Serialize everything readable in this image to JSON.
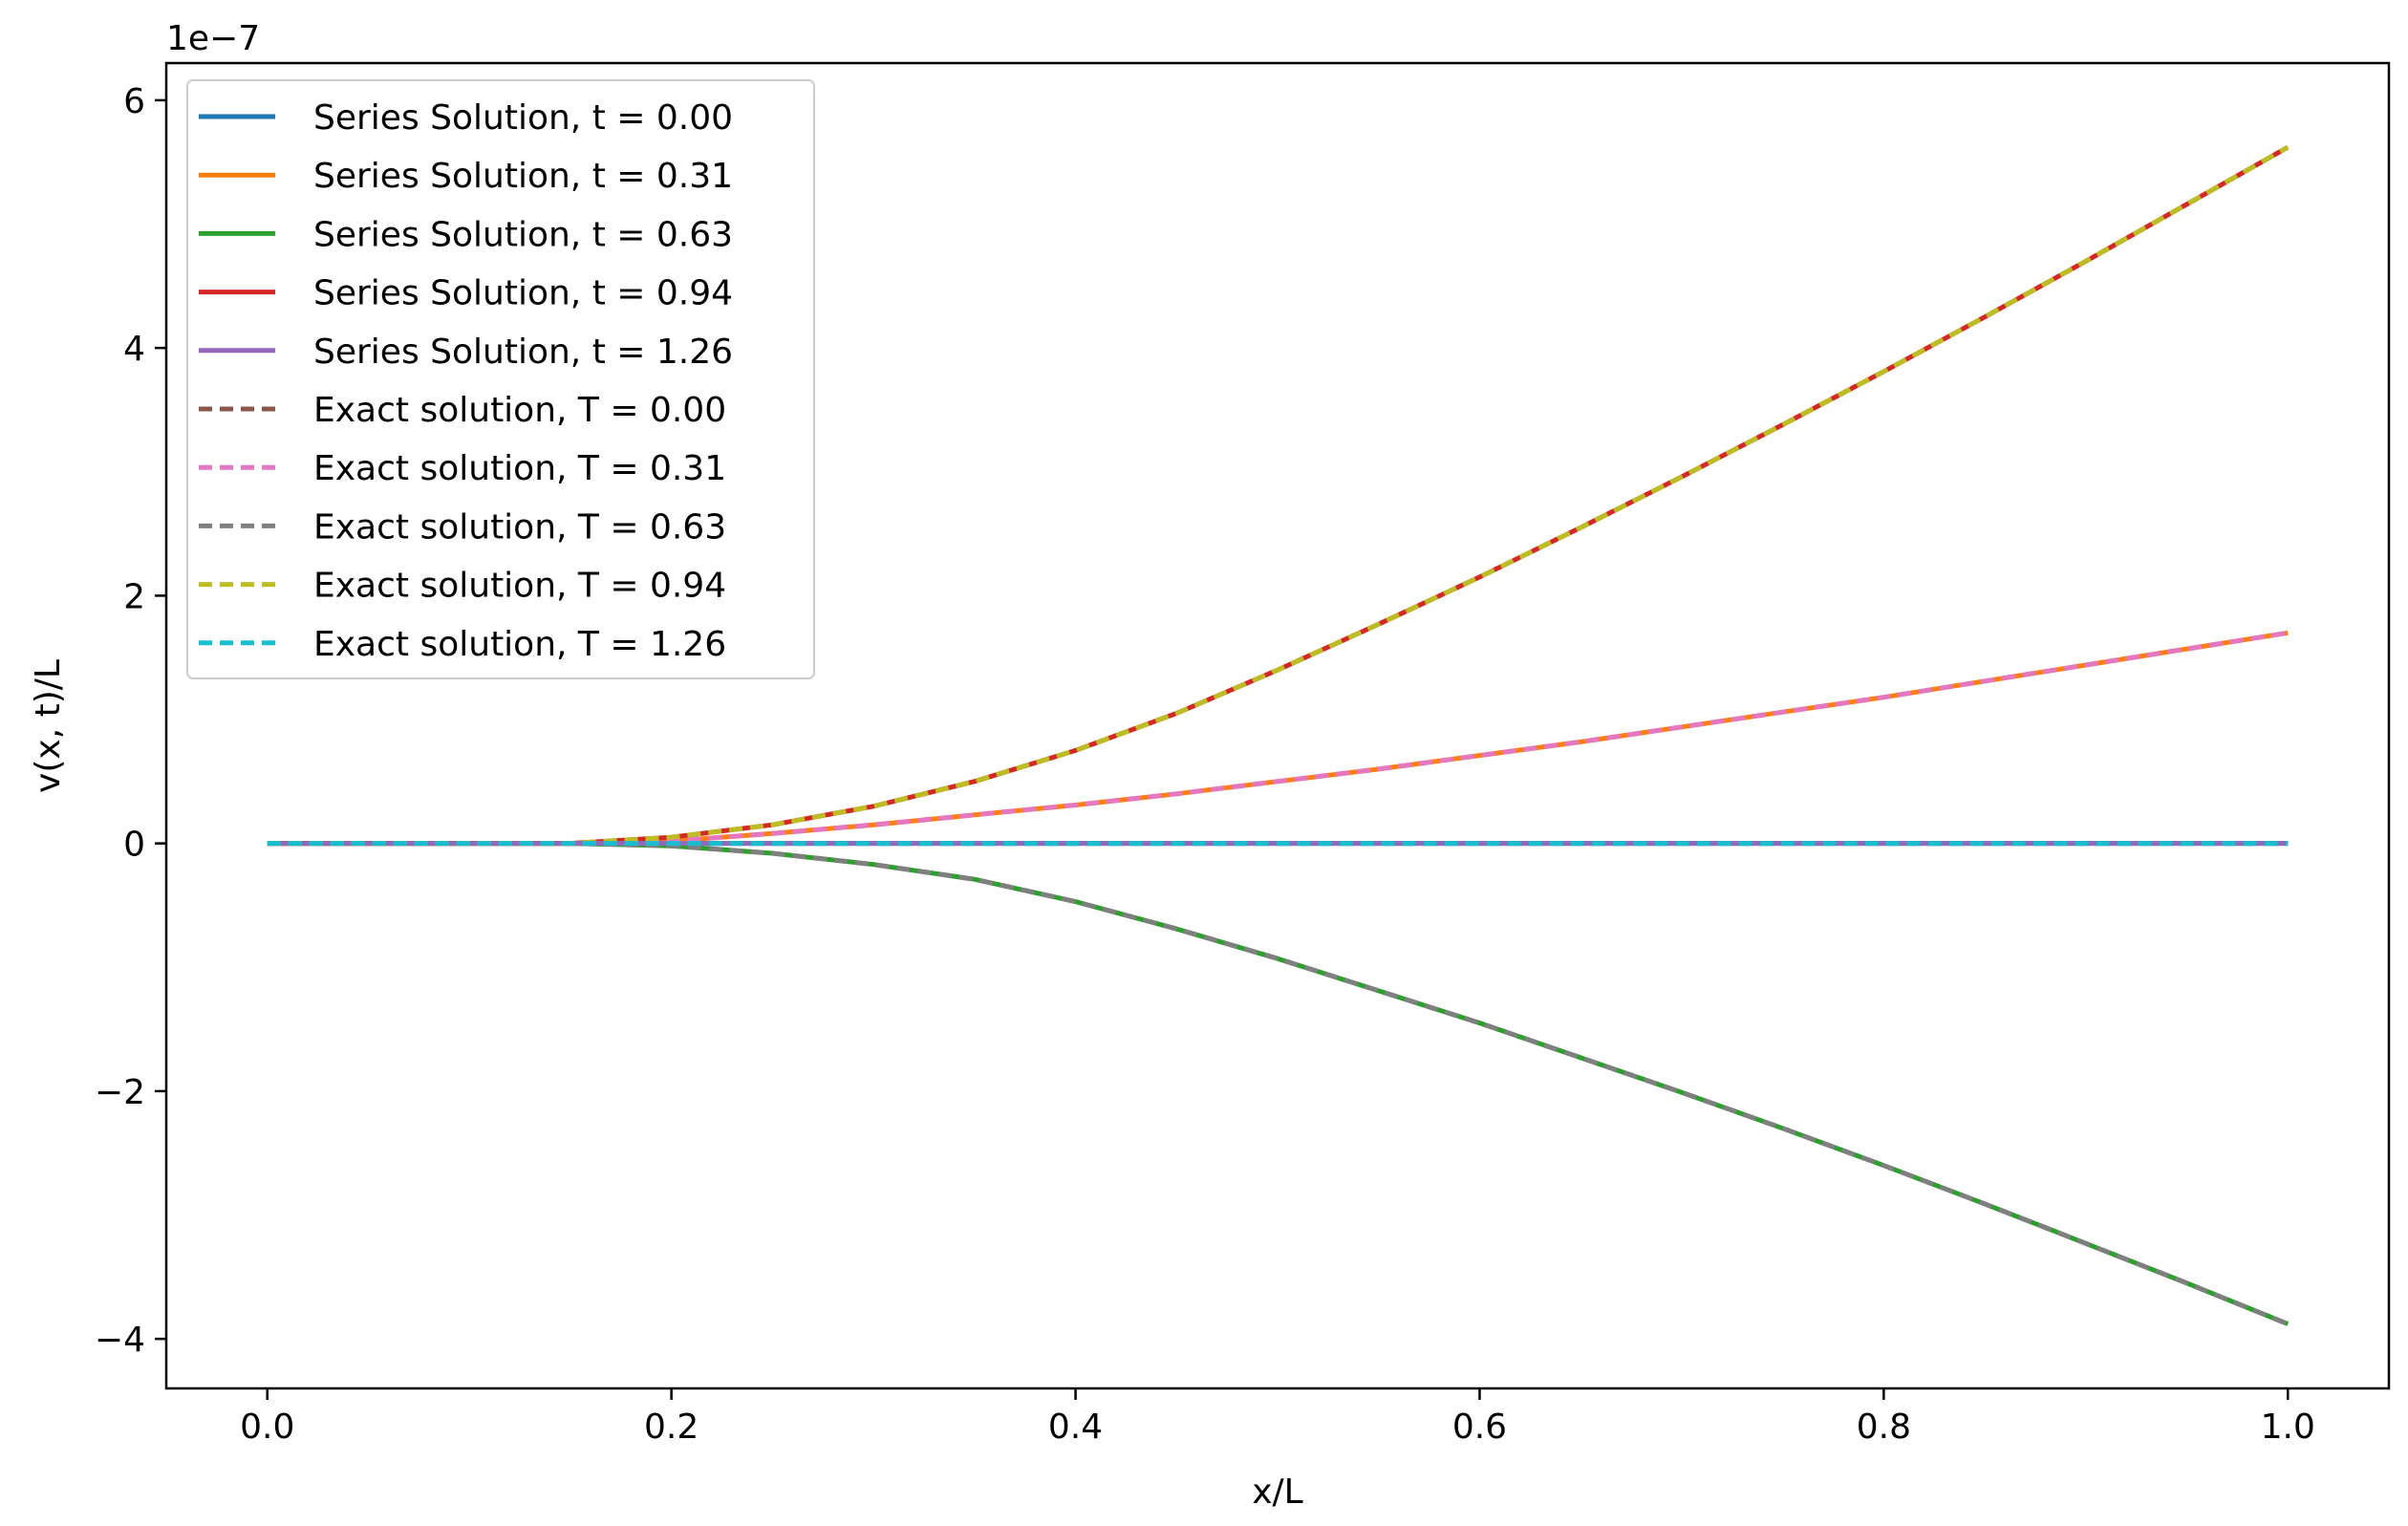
{
  "chart_data": {
    "type": "line",
    "title": "",
    "xlabel": "x/L",
    "ylabel": "v(x, t)/L",
    "y_offset_label": "1e−7",
    "xlim": [
      -0.05,
      1.05
    ],
    "ylim": [
      -4.4,
      6.3
    ],
    "y_scale_factor": 1e-07,
    "xticks": [
      0.0,
      0.2,
      0.4,
      0.6,
      0.8,
      1.0
    ],
    "xtick_labels": [
      "0.0",
      "0.2",
      "0.4",
      "0.6",
      "0.8",
      "1.0"
    ],
    "yticks": [
      -4,
      -2,
      0,
      2,
      4,
      6
    ],
    "ytick_labels": [
      "−4",
      "−2",
      "0",
      "2",
      "4",
      "6"
    ],
    "grid": false,
    "legend_position": "top-left",
    "x": [
      0.0,
      0.05,
      0.1,
      0.15,
      0.2,
      0.25,
      0.3,
      0.35,
      0.4,
      0.45,
      0.5,
      0.55,
      0.6,
      0.65,
      0.7,
      0.75,
      0.8,
      0.85,
      0.9,
      0.95,
      1.0
    ],
    "series": [
      {
        "name": "Series Solution, t = 0.00",
        "color": "#1f77b4",
        "style": "solid",
        "values": [
          0,
          0,
          0,
          0,
          0,
          0,
          0,
          0,
          0,
          0,
          0,
          0,
          0,
          0,
          0,
          0,
          0,
          0,
          0,
          0,
          0
        ]
      },
      {
        "name": "Series Solution, t = 0.31",
        "color": "#ff7f0e",
        "style": "solid",
        "values": [
          0,
          0,
          0,
          0,
          0.02,
          0.08,
          0.15,
          0.23,
          0.31,
          0.4,
          0.5,
          0.6,
          0.71,
          0.82,
          0.94,
          1.06,
          1.18,
          1.31,
          1.44,
          1.57,
          1.7
        ]
      },
      {
        "name": "Series Solution, t = 0.63",
        "color": "#2ca02c",
        "style": "solid",
        "values": [
          0,
          0,
          0,
          0,
          -0.02,
          -0.08,
          -0.17,
          -0.29,
          -0.47,
          -0.69,
          -0.93,
          -1.19,
          -1.45,
          -1.73,
          -2.01,
          -2.3,
          -2.6,
          -2.91,
          -3.23,
          -3.55,
          -3.88
        ]
      },
      {
        "name": "Series Solution, t = 0.94",
        "color": "#d62728",
        "style": "solid",
        "values": [
          0,
          0,
          0,
          0,
          0.05,
          0.15,
          0.3,
          0.5,
          0.75,
          1.05,
          1.4,
          1.77,
          2.15,
          2.55,
          2.96,
          3.38,
          3.81,
          4.25,
          4.7,
          5.16,
          5.62
        ]
      },
      {
        "name": "Series Solution, t = 1.26",
        "color": "#9467bd",
        "style": "solid",
        "values": [
          0,
          0,
          0,
          0,
          0,
          0,
          0,
          0,
          0,
          0,
          0,
          0,
          0,
          0,
          0,
          0,
          0,
          0,
          0,
          0,
          0
        ]
      },
      {
        "name": "Exact solution, T = 0.00",
        "color": "#8c564b",
        "style": "dashed",
        "values": [
          0,
          0,
          0,
          0,
          0,
          0,
          0,
          0,
          0,
          0,
          0,
          0,
          0,
          0,
          0,
          0,
          0,
          0,
          0,
          0,
          0
        ]
      },
      {
        "name": "Exact solution, T = 0.31",
        "color": "#e377c2",
        "style": "dashed",
        "values": [
          0,
          0,
          0,
          0,
          0.02,
          0.08,
          0.15,
          0.23,
          0.31,
          0.4,
          0.5,
          0.6,
          0.71,
          0.82,
          0.94,
          1.06,
          1.18,
          1.31,
          1.44,
          1.57,
          1.7
        ]
      },
      {
        "name": "Exact solution, T = 0.63",
        "color": "#7f7f7f",
        "style": "dashed",
        "values": [
          0,
          0,
          0,
          0,
          -0.02,
          -0.08,
          -0.17,
          -0.29,
          -0.47,
          -0.69,
          -0.93,
          -1.19,
          -1.45,
          -1.73,
          -2.01,
          -2.3,
          -2.6,
          -2.91,
          -3.23,
          -3.55,
          -3.88
        ]
      },
      {
        "name": "Exact solution, T = 0.94",
        "color": "#bcbd22",
        "style": "dashed",
        "values": [
          0,
          0,
          0,
          0,
          0.05,
          0.15,
          0.3,
          0.5,
          0.75,
          1.05,
          1.4,
          1.77,
          2.15,
          2.55,
          2.96,
          3.38,
          3.81,
          4.25,
          4.7,
          5.16,
          5.62
        ]
      },
      {
        "name": "Exact solution, T = 1.26",
        "color": "#17becf",
        "style": "dashed",
        "values": [
          0,
          0,
          0,
          0,
          0,
          0,
          0,
          0,
          0,
          0,
          0,
          0,
          0,
          0,
          0,
          0,
          0,
          0,
          0,
          0,
          0
        ]
      }
    ]
  }
}
